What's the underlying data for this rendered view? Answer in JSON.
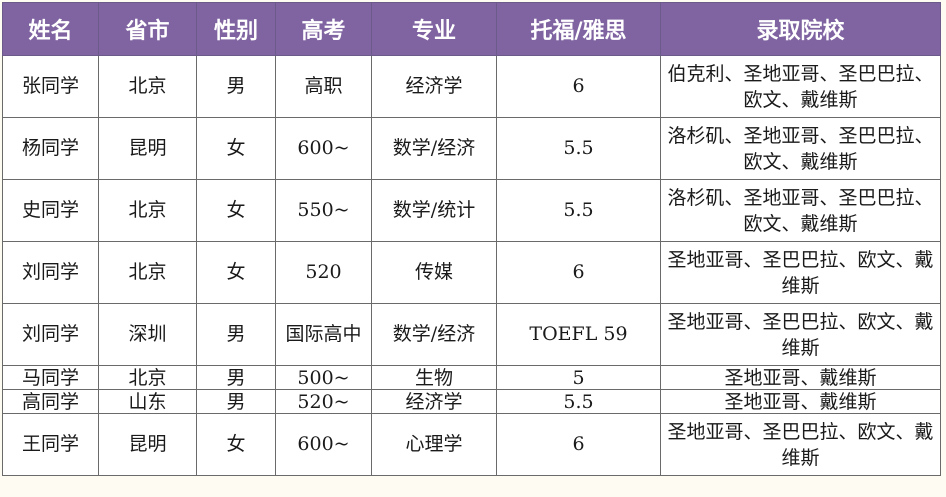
{
  "header": {
    "name": "姓名",
    "city": "省市",
    "gender": "性别",
    "gaokao": "高考",
    "major": "专业",
    "toefl_ielts": "托福/雅思",
    "admitted_schools": "录取院校"
  },
  "rows": [
    {
      "name": "张同学",
      "city": "北京",
      "gender": "男",
      "gaokao": "高职",
      "major": "经济学",
      "score": "6",
      "schools": "伯克利、圣地亚哥、圣巴巴拉、欧文、戴维斯"
    },
    {
      "name": "杨同学",
      "city": "昆明",
      "gender": "女",
      "gaokao": "600~",
      "major": "数学/经济",
      "score": "5.5",
      "schools": "洛杉矶、圣地亚哥、圣巴巴拉、欧文、戴维斯"
    },
    {
      "name": "史同学",
      "city": "北京",
      "gender": "女",
      "gaokao": "550~",
      "major": "数学/统计",
      "score": "5.5",
      "schools": "洛杉矶、圣地亚哥、圣巴巴拉、欧文、戴维斯"
    },
    {
      "name": "刘同学",
      "city": "北京",
      "gender": "女",
      "gaokao": "520",
      "major": "传媒",
      "score": "6",
      "schools": "圣地亚哥、圣巴巴拉、欧文、戴维斯"
    },
    {
      "name": "刘同学",
      "city": "深圳",
      "gender": "男",
      "gaokao": "国际高中",
      "major": "数学/经济",
      "score": "TOEFL 59",
      "schools": "圣地亚哥、圣巴巴拉、欧文、戴维斯"
    },
    {
      "name": "马同学",
      "city": "北京",
      "gender": "男",
      "gaokao": "500~",
      "major": "生物",
      "score": "5",
      "schools": "圣地亚哥、戴维斯"
    },
    {
      "name": "高同学",
      "city": "山东",
      "gender": "男",
      "gaokao": "520~",
      "major": "经济学",
      "score": "5.5",
      "schools": "圣地亚哥、戴维斯"
    },
    {
      "name": "王同学",
      "city": "昆明",
      "gender": "女",
      "gaokao": "600~",
      "major": "心理学",
      "score": "6",
      "schools": "圣地亚哥、圣巴巴拉、欧文、戴维斯"
    }
  ]
}
